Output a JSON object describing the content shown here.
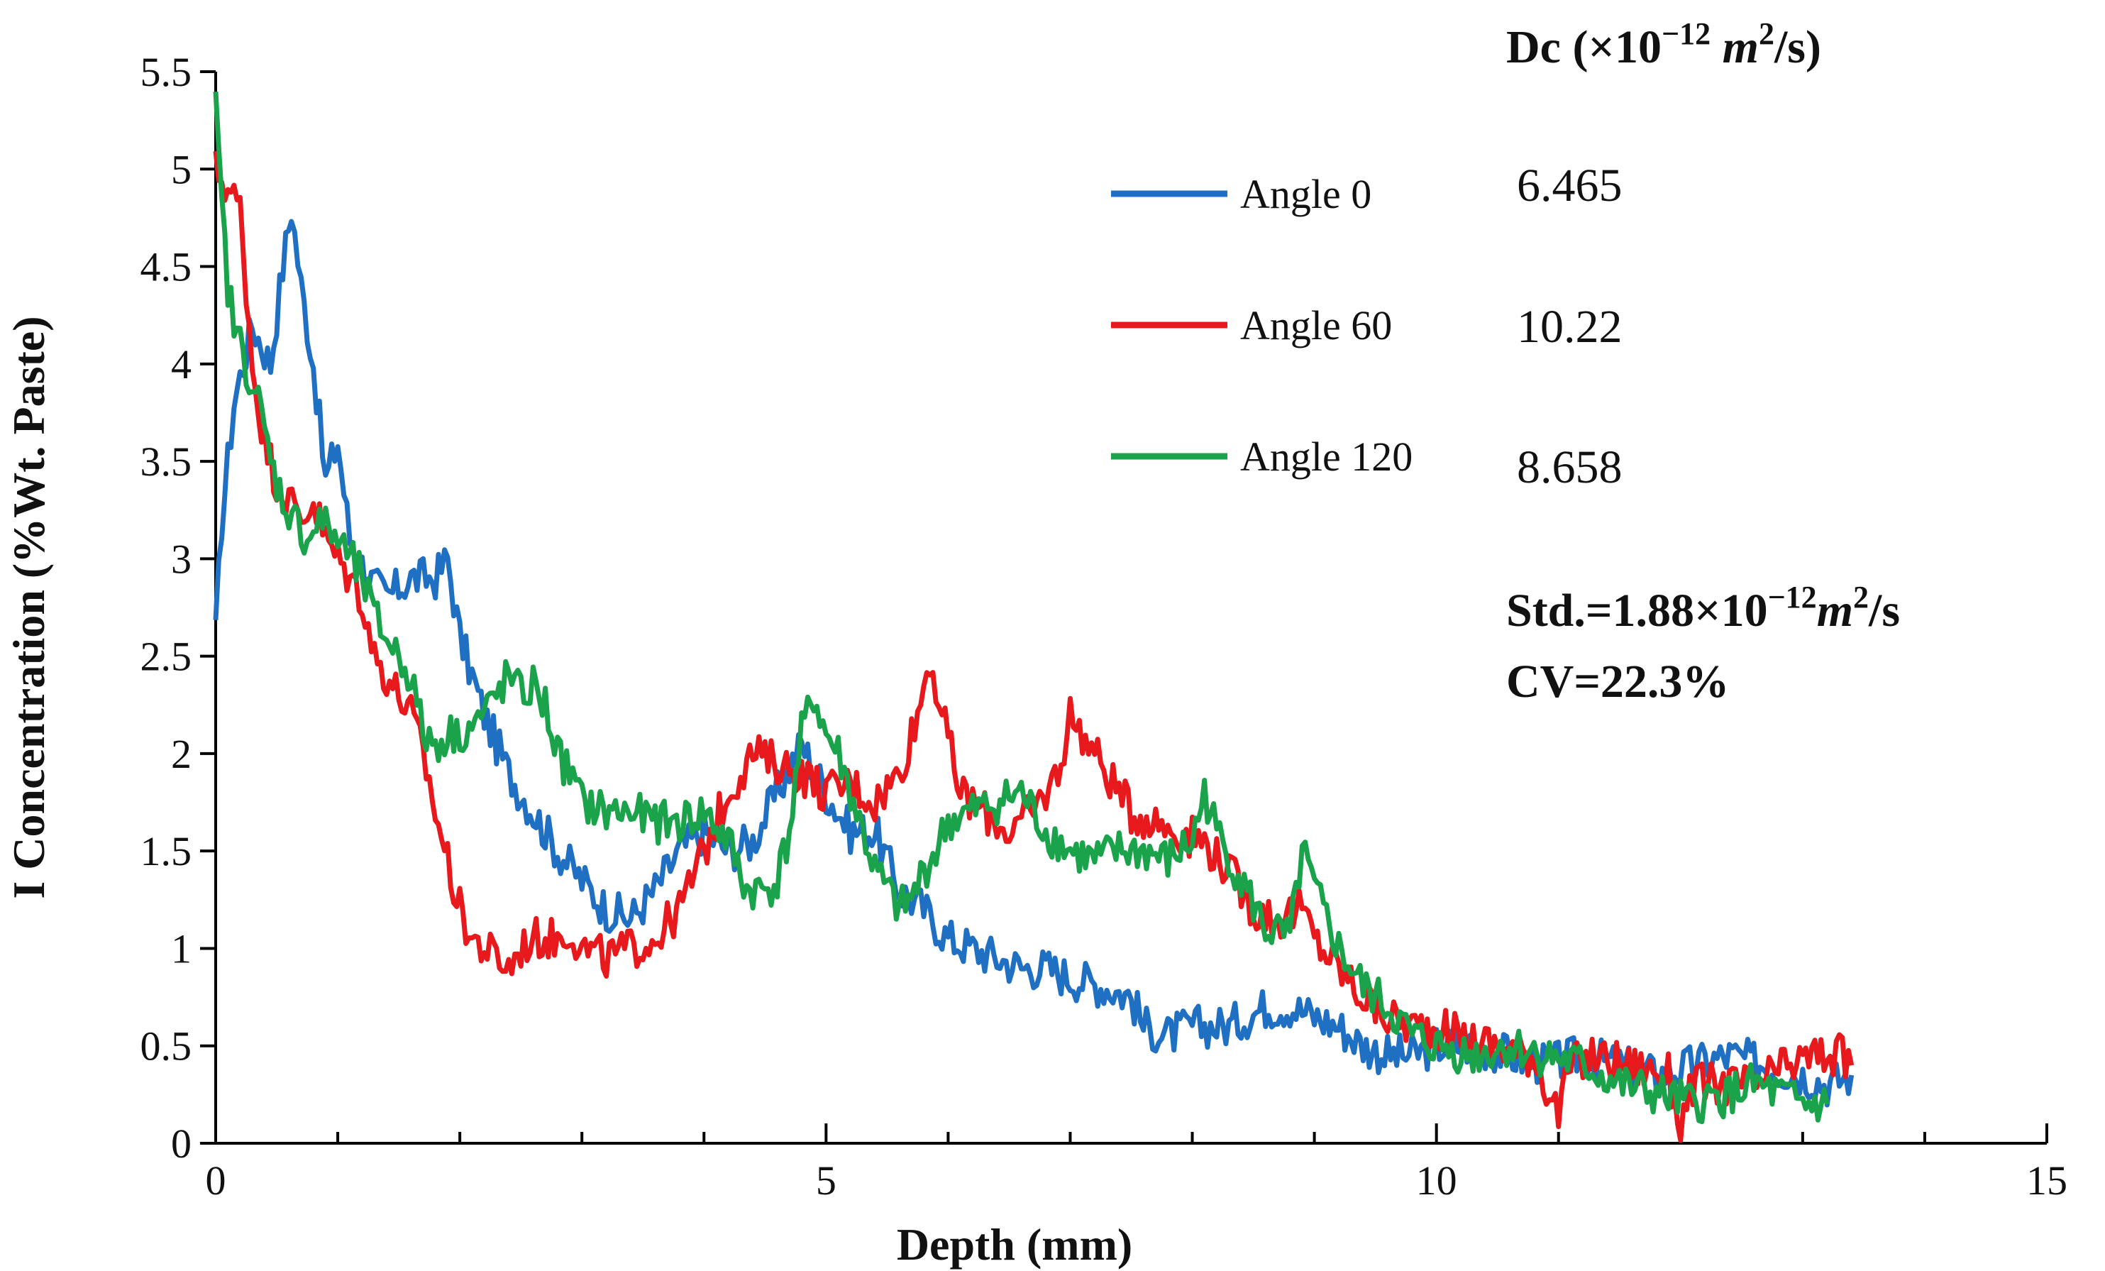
{
  "chart_data": {
    "type": "line",
    "title": "",
    "xlabel": "Depth (mm)",
    "ylabel": "I Concentration (%Wt.  Paste)",
    "xlim": [
      0,
      15
    ],
    "ylim": [
      0,
      5.5
    ],
    "xticks": [
      0,
      5,
      10,
      15
    ],
    "xtick_labels": [
      "0",
      "5",
      "10",
      "15"
    ],
    "yticks": [
      0,
      0.5,
      1,
      1.5,
      2,
      2.5,
      3,
      3.5,
      4,
      4.5,
      5,
      5.5
    ],
    "ytick_labels": [
      "0",
      "0.5",
      "1",
      "1.5",
      "2",
      "2.5",
      "3",
      "3.5",
      "4",
      "4.5",
      "5",
      "5.5"
    ],
    "grid": false,
    "legend_position": "top-right",
    "dc_header": {
      "prefix": "Dc (×10",
      "exponent": "−12",
      "unit_base": "m",
      "unit_exponent": "2",
      "suffix": "/s)"
    },
    "series": [
      {
        "name": "Angle 0",
        "color": "#1f6fc3",
        "dc": "6.465",
        "points": [
          [
            0,
            2.6
          ],
          [
            0.05,
            3.2
          ],
          [
            0.15,
            3.8
          ],
          [
            0.3,
            4.2
          ],
          [
            0.45,
            4.0
          ],
          [
            0.55,
            4.5
          ],
          [
            0.62,
            4.8
          ],
          [
            0.7,
            4.4
          ],
          [
            0.8,
            4.0
          ],
          [
            0.9,
            3.4
          ],
          [
            1.0,
            3.6
          ],
          [
            1.1,
            3.1
          ],
          [
            1.25,
            2.9
          ],
          [
            1.4,
            2.8
          ],
          [
            1.6,
            2.9
          ],
          [
            1.8,
            2.9
          ],
          [
            1.9,
            3.0
          ],
          [
            2.0,
            2.6
          ],
          [
            2.2,
            2.2
          ],
          [
            2.4,
            1.9
          ],
          [
            2.6,
            1.7
          ],
          [
            2.8,
            1.5
          ],
          [
            3.0,
            1.35
          ],
          [
            3.2,
            1.2
          ],
          [
            3.4,
            1.15
          ],
          [
            3.6,
            1.3
          ],
          [
            3.8,
            1.5
          ],
          [
            4.0,
            1.6
          ],
          [
            4.2,
            1.5
          ],
          [
            4.4,
            1.55
          ],
          [
            4.6,
            1.8
          ],
          [
            4.8,
            2.05
          ],
          [
            5.0,
            1.8
          ],
          [
            5.2,
            1.6
          ],
          [
            5.4,
            1.6
          ],
          [
            5.6,
            1.3
          ],
          [
            5.8,
            1.2
          ],
          [
            6.0,
            1.05
          ],
          [
            6.2,
            1.0
          ],
          [
            6.4,
            0.95
          ],
          [
            6.6,
            0.9
          ],
          [
            6.8,
            0.9
          ],
          [
            7.0,
            0.85
          ],
          [
            7.3,
            0.8
          ],
          [
            7.5,
            0.75
          ],
          [
            7.6,
            0.6
          ],
          [
            7.8,
            0.55
          ],
          [
            8.0,
            0.6
          ],
          [
            8.3,
            0.6
          ],
          [
            8.6,
            0.7
          ],
          [
            8.8,
            0.7
          ],
          [
            9.0,
            0.65
          ],
          [
            9.2,
            0.6
          ],
          [
            9.4,
            0.5
          ],
          [
            9.6,
            0.45
          ],
          [
            9.8,
            0.45
          ],
          [
            10.0,
            0.5
          ],
          [
            10.3,
            0.5
          ],
          [
            10.6,
            0.45
          ],
          [
            10.9,
            0.4
          ],
          [
            11.2,
            0.45
          ],
          [
            11.5,
            0.4
          ],
          [
            11.8,
            0.35
          ],
          [
            12.1,
            0.4
          ],
          [
            12.4,
            0.45
          ],
          [
            12.7,
            0.4
          ],
          [
            13.0,
            0.35
          ],
          [
            13.2,
            0.3
          ],
          [
            13.4,
            0.35
          ]
        ]
      },
      {
        "name": "Angle 60",
        "color": "#e8191c",
        "dc": "10.22",
        "points": [
          [
            0,
            5.0
          ],
          [
            0.1,
            4.9
          ],
          [
            0.2,
            4.8
          ],
          [
            0.3,
            4.0
          ],
          [
            0.4,
            3.6
          ],
          [
            0.5,
            3.4
          ],
          [
            0.6,
            3.3
          ],
          [
            0.7,
            3.2
          ],
          [
            0.8,
            3.3
          ],
          [
            0.9,
            3.1
          ],
          [
            1.0,
            3.0
          ],
          [
            1.1,
            2.9
          ],
          [
            1.2,
            2.8
          ],
          [
            1.3,
            2.5
          ],
          [
            1.4,
            2.4
          ],
          [
            1.5,
            2.3
          ],
          [
            1.6,
            2.2
          ],
          [
            1.7,
            2.0
          ],
          [
            1.8,
            1.7
          ],
          [
            1.9,
            1.45
          ],
          [
            2.0,
            1.2
          ],
          [
            2.1,
            1.05
          ],
          [
            2.2,
            1.0
          ],
          [
            2.3,
            0.95
          ],
          [
            2.4,
            0.9
          ],
          [
            2.5,
            1.0
          ],
          [
            2.6,
            1.05
          ],
          [
            2.8,
            1.05
          ],
          [
            2.9,
            1.1
          ],
          [
            3.0,
            1.0
          ],
          [
            3.2,
            0.95
          ],
          [
            3.4,
            1.0
          ],
          [
            3.6,
            1.05
          ],
          [
            3.8,
            1.2
          ],
          [
            4.0,
            1.5
          ],
          [
            4.2,
            1.8
          ],
          [
            4.4,
            2.0
          ],
          [
            4.6,
            1.95
          ],
          [
            4.8,
            1.9
          ],
          [
            5.0,
            1.8
          ],
          [
            5.2,
            1.85
          ],
          [
            5.4,
            1.75
          ],
          [
            5.6,
            1.9
          ],
          [
            5.75,
            2.2
          ],
          [
            5.85,
            2.5
          ],
          [
            5.95,
            2.2
          ],
          [
            6.1,
            1.8
          ],
          [
            6.3,
            1.7
          ],
          [
            6.5,
            1.6
          ],
          [
            6.7,
            1.7
          ],
          [
            6.9,
            1.9
          ],
          [
            7.0,
            2.2
          ],
          [
            7.1,
            2.1
          ],
          [
            7.3,
            1.9
          ],
          [
            7.5,
            1.7
          ],
          [
            7.7,
            1.65
          ],
          [
            7.9,
            1.6
          ],
          [
            8.1,
            1.55
          ],
          [
            8.3,
            1.4
          ],
          [
            8.5,
            1.2
          ],
          [
            8.7,
            1.15
          ],
          [
            8.9,
            1.2
          ],
          [
            9.0,
            1.05
          ],
          [
            9.2,
            0.9
          ],
          [
            9.4,
            0.75
          ],
          [
            9.6,
            0.65
          ],
          [
            9.8,
            0.6
          ],
          [
            10.0,
            0.6
          ],
          [
            10.2,
            0.55
          ],
          [
            10.5,
            0.5
          ],
          [
            10.8,
            0.45
          ],
          [
            11.0,
            0.15
          ],
          [
            11.1,
            0.4
          ],
          [
            11.3,
            0.45
          ],
          [
            11.6,
            0.4
          ],
          [
            11.9,
            0.35
          ],
          [
            12.0,
            0.1
          ],
          [
            12.1,
            0.3
          ],
          [
            12.3,
            0.3
          ],
          [
            12.6,
            0.3
          ],
          [
            12.9,
            0.4
          ],
          [
            13.1,
            0.45
          ],
          [
            13.3,
            0.45
          ],
          [
            13.4,
            0.4
          ]
        ]
      },
      {
        "name": "Angle 120",
        "color": "#1aa34a",
        "dc": "8.658",
        "points": [
          [
            0,
            5.3
          ],
          [
            0.05,
            4.8
          ],
          [
            0.1,
            4.4
          ],
          [
            0.15,
            4.2
          ],
          [
            0.25,
            4.0
          ],
          [
            0.35,
            3.8
          ],
          [
            0.45,
            3.5
          ],
          [
            0.55,
            3.3
          ],
          [
            0.65,
            3.2
          ],
          [
            0.75,
            3.1
          ],
          [
            0.85,
            3.2
          ],
          [
            1.0,
            3.1
          ],
          [
            1.1,
            3.0
          ],
          [
            1.2,
            2.9
          ],
          [
            1.3,
            2.7
          ],
          [
            1.4,
            2.6
          ],
          [
            1.5,
            2.5
          ],
          [
            1.6,
            2.4
          ],
          [
            1.7,
            2.1
          ],
          [
            1.8,
            2.05
          ],
          [
            1.9,
            2.1
          ],
          [
            2.0,
            2.1
          ],
          [
            2.1,
            2.15
          ],
          [
            2.2,
            2.2
          ],
          [
            2.3,
            2.3
          ],
          [
            2.4,
            2.4
          ],
          [
            2.5,
            2.3
          ],
          [
            2.6,
            2.35
          ],
          [
            2.7,
            2.25
          ],
          [
            2.8,
            2.0
          ],
          [
            2.9,
            1.9
          ],
          [
            3.0,
            1.75
          ],
          [
            3.2,
            1.7
          ],
          [
            3.4,
            1.7
          ],
          [
            3.6,
            1.65
          ],
          [
            3.8,
            1.65
          ],
          [
            4.0,
            1.7
          ],
          [
            4.2,
            1.55
          ],
          [
            4.35,
            1.3
          ],
          [
            4.5,
            1.3
          ],
          [
            4.6,
            1.35
          ],
          [
            4.7,
            1.6
          ],
          [
            4.8,
            2.1
          ],
          [
            4.9,
            2.3
          ],
          [
            5.0,
            2.1
          ],
          [
            5.1,
            2.0
          ],
          [
            5.2,
            1.8
          ],
          [
            5.3,
            1.6
          ],
          [
            5.4,
            1.4
          ],
          [
            5.5,
            1.3
          ],
          [
            5.6,
            1.2
          ],
          [
            5.7,
            1.25
          ],
          [
            5.8,
            1.4
          ],
          [
            5.9,
            1.5
          ],
          [
            6.0,
            1.65
          ],
          [
            6.2,
            1.7
          ],
          [
            6.4,
            1.75
          ],
          [
            6.6,
            1.8
          ],
          [
            6.8,
            1.6
          ],
          [
            7.0,
            1.5
          ],
          [
            7.2,
            1.45
          ],
          [
            7.4,
            1.5
          ],
          [
            7.6,
            1.5
          ],
          [
            7.8,
            1.45
          ],
          [
            8.0,
            1.55
          ],
          [
            8.1,
            1.8
          ],
          [
            8.2,
            1.6
          ],
          [
            8.4,
            1.35
          ],
          [
            8.6,
            1.1
          ],
          [
            8.8,
            1.05
          ],
          [
            8.9,
            1.5
          ],
          [
            9.0,
            1.3
          ],
          [
            9.2,
            1.0
          ],
          [
            9.4,
            0.8
          ],
          [
            9.6,
            0.7
          ],
          [
            9.8,
            0.55
          ],
          [
            10.0,
            0.5
          ],
          [
            10.3,
            0.45
          ],
          [
            10.6,
            0.5
          ],
          [
            10.9,
            0.45
          ],
          [
            11.2,
            0.4
          ],
          [
            11.5,
            0.3
          ],
          [
            11.8,
            0.25
          ],
          [
            12.1,
            0.2
          ],
          [
            12.4,
            0.25
          ],
          [
            12.6,
            0.3
          ],
          [
            12.8,
            0.25
          ],
          [
            13.0,
            0.2
          ],
          [
            13.2,
            0.2
          ]
        ]
      }
    ],
    "std_annotation": {
      "prefix": "Std.=1.88×10",
      "exponent": "−12",
      "unit_base": "m",
      "unit_exponent": "2",
      "suffix": "/s"
    },
    "cv_annotation": "CV=22.3%"
  }
}
